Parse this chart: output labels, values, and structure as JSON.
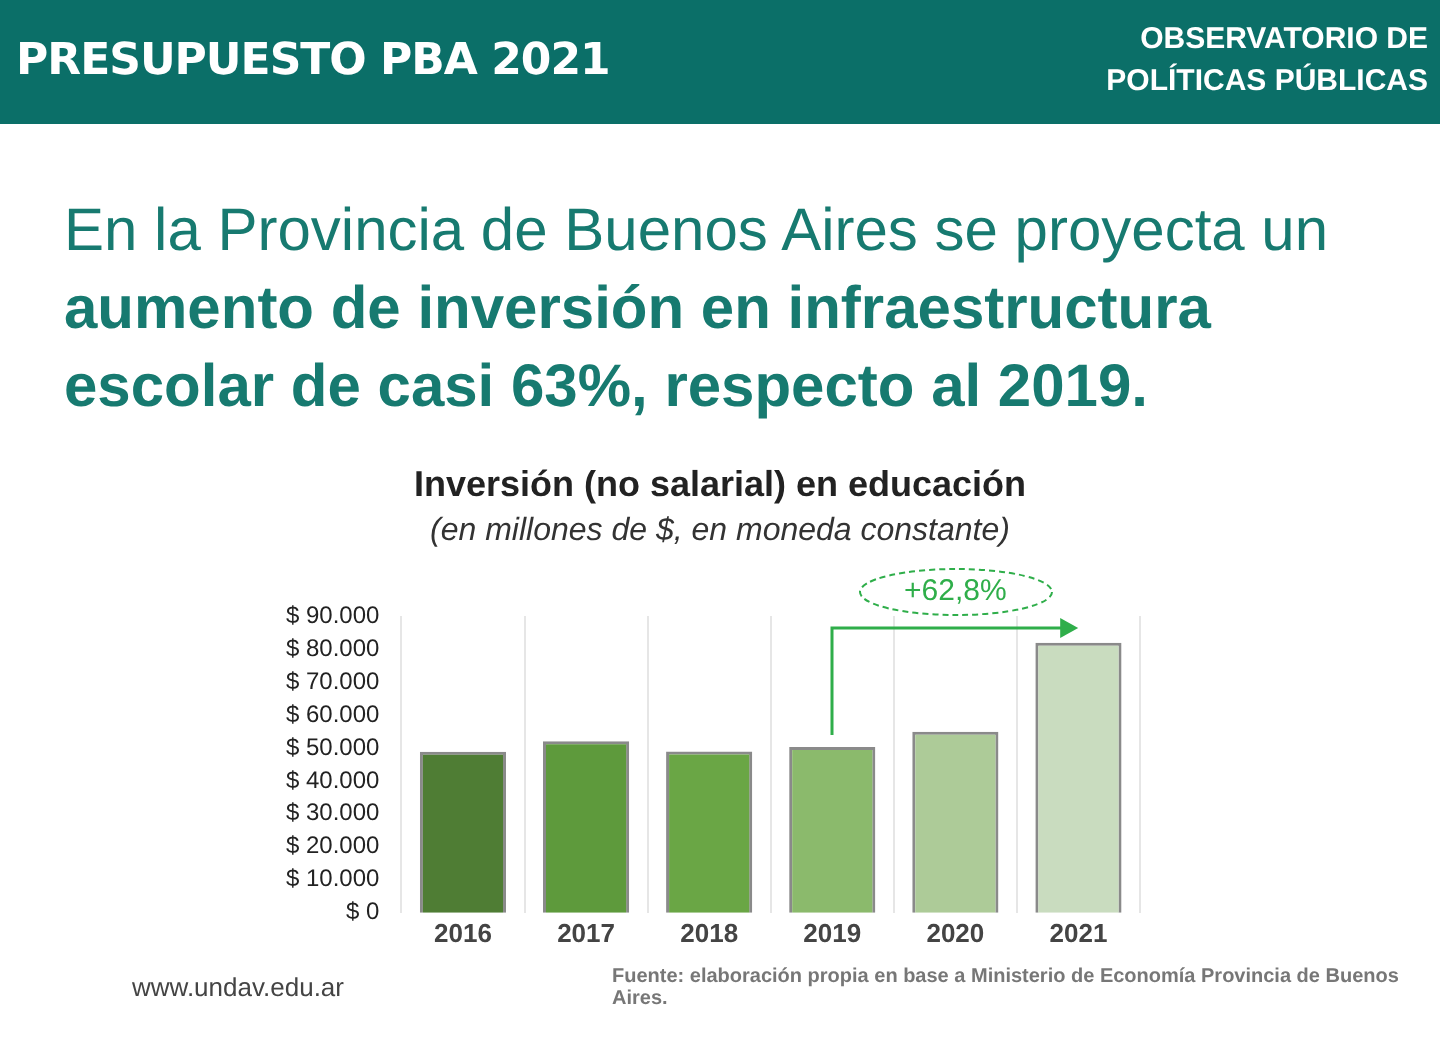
{
  "chart_data": {
    "type": "bar",
    "title": "Inversión (no salarial) en educación",
    "subtitle": "(en millones de $, en moneda constante)",
    "categories": [
      "2016",
      "2017",
      "2018",
      "2019",
      "2020",
      "2021"
    ],
    "values": [
      48800,
      52000,
      48900,
      50300,
      54900,
      81900
    ],
    "colors": [
      "#4f7d34",
      "#5e9a3c",
      "#6aa645",
      "#8bba6c",
      "#adcb98",
      "#c9dcbf"
    ],
    "ylim": [
      0,
      90000
    ],
    "yticks": [
      {
        "value": 0,
        "label": "$ 0"
      },
      {
        "value": 10000,
        "label": "$ 10.000"
      },
      {
        "value": 20000,
        "label": "$ 20.000"
      },
      {
        "value": 30000,
        "label": "$ 30.000"
      },
      {
        "value": 40000,
        "label": "$ 40.000"
      },
      {
        "value": 50000,
        "label": "$ 50.000"
      },
      {
        "value": 60000,
        "label": "$ 60.000"
      },
      {
        "value": 70000,
        "label": "$ 70.000"
      },
      {
        "value": 80000,
        "label": "$ 80.000"
      },
      {
        "value": 90000,
        "label": "$ 90.000"
      }
    ],
    "grid": "x",
    "annotations": [
      "PRESUPUESTO PBA 2021",
      "OBSERVATORIO DE POLÍTICAS PÚBLICAS",
      "En la Provincia de Buenos Aires se proyecta un",
      "aumento de inversión en infraestructura escolar de casi 63%, respecto al 2019.",
      "+62,8%",
      "www.undav.edu.ar",
      "Fuente: elaboración propia en base a Ministerio de Economía Provincia de Buenos Aires."
    ]
  }
}
